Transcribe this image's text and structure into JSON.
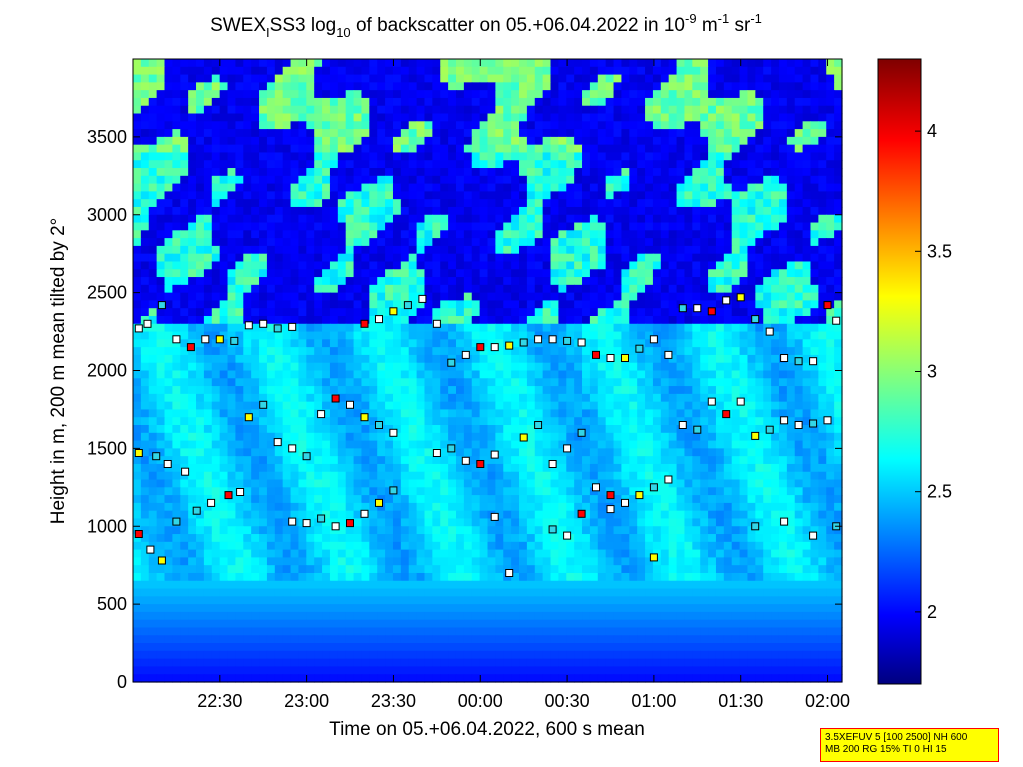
{
  "chart_data": {
    "type": "heatmap",
    "title": {
      "prefix": "SWEX",
      "prefix_sub": "I",
      "mid": "SS3 log",
      "log_sub": "10",
      "text": " of backscatter on 05.+06.04.2022 in 10",
      "exp1": "-9",
      "unit_m": " m",
      "exp2": "-1",
      "unit_sr": " sr",
      "exp3": "-1"
    },
    "xlabel": "Time on 05.+06.04.2022, 600 s mean",
    "ylabel": "Height in m, 200 m mean tilted by 2°",
    "x_ticks": [
      "22:30",
      "23:00",
      "23:30",
      "00:00",
      "00:30",
      "01:00",
      "01:30",
      "02:00"
    ],
    "y_ticks": [
      "0",
      "500",
      "1000",
      "1500",
      "2000",
      "2500",
      "3000",
      "3500"
    ],
    "x_range": [
      "22:00",
      "02:05"
    ],
    "ylim": [
      0,
      4000
    ],
    "colorbar": {
      "range": [
        1.7,
        4.3
      ],
      "ticks": [
        "2",
        "2.5",
        "3",
        "3.5",
        "4"
      ],
      "colormap": "jet"
    },
    "layer_markers": [
      {
        "time": "22:02",
        "height": 2270
      },
      {
        "time": "22:05",
        "height": 2300
      },
      {
        "time": "22:10",
        "height": 2420
      },
      {
        "time": "22:15",
        "height": 2200
      },
      {
        "time": "22:20",
        "height": 2150
      },
      {
        "time": "22:25",
        "height": 2200
      },
      {
        "time": "22:30",
        "height": 2200
      },
      {
        "time": "22:35",
        "height": 2190
      },
      {
        "time": "22:40",
        "height": 2290
      },
      {
        "time": "22:45",
        "height": 2300
      },
      {
        "time": "22:50",
        "height": 2270
      },
      {
        "time": "22:55",
        "height": 2280
      },
      {
        "time": "23:20",
        "height": 2300
      },
      {
        "time": "23:25",
        "height": 2330
      },
      {
        "time": "23:30",
        "height": 2380
      },
      {
        "time": "23:35",
        "height": 2420
      },
      {
        "time": "23:40",
        "height": 2460
      },
      {
        "time": "23:45",
        "height": 2300
      },
      {
        "time": "23:50",
        "height": 2050
      },
      {
        "time": "23:55",
        "height": 2100
      },
      {
        "time": "00:00",
        "height": 2150
      },
      {
        "time": "00:05",
        "height": 2150
      },
      {
        "time": "00:10",
        "height": 2160
      },
      {
        "time": "00:15",
        "height": 2180
      },
      {
        "time": "00:20",
        "height": 2200
      },
      {
        "time": "00:25",
        "height": 2200
      },
      {
        "time": "00:30",
        "height": 2190
      },
      {
        "time": "00:35",
        "height": 2180
      },
      {
        "time": "00:40",
        "height": 2100
      },
      {
        "time": "00:45",
        "height": 2080
      },
      {
        "time": "00:50",
        "height": 2080
      },
      {
        "time": "00:55",
        "height": 2140
      },
      {
        "time": "01:00",
        "height": 2200
      },
      {
        "time": "01:05",
        "height": 2100
      },
      {
        "time": "01:10",
        "height": 2400
      },
      {
        "time": "01:15",
        "height": 2400
      },
      {
        "time": "01:20",
        "height": 2380
      },
      {
        "time": "01:25",
        "height": 2450
      },
      {
        "time": "01:30",
        "height": 2470
      },
      {
        "time": "01:35",
        "height": 2330
      },
      {
        "time": "01:40",
        "height": 2250
      },
      {
        "time": "01:45",
        "height": 2080
      },
      {
        "time": "01:50",
        "height": 2060
      },
      {
        "time": "01:55",
        "height": 2060
      },
      {
        "time": "02:00",
        "height": 2420
      },
      {
        "time": "02:03",
        "height": 2320
      },
      {
        "time": "22:02",
        "height": 1470
      },
      {
        "time": "22:08",
        "height": 1450
      },
      {
        "time": "22:12",
        "height": 1400
      },
      {
        "time": "22:18",
        "height": 1350
      },
      {
        "time": "22:22",
        "height": 1100
      },
      {
        "time": "22:27",
        "height": 1150
      },
      {
        "time": "22:33",
        "height": 1200
      },
      {
        "time": "22:37",
        "height": 1220
      },
      {
        "time": "22:40",
        "height": 1700
      },
      {
        "time": "22:45",
        "height": 1780
      },
      {
        "time": "22:50",
        "height": 1540
      },
      {
        "time": "22:55",
        "height": 1500
      },
      {
        "time": "23:00",
        "height": 1450
      },
      {
        "time": "23:05",
        "height": 1720
      },
      {
        "time": "23:10",
        "height": 1820
      },
      {
        "time": "23:15",
        "height": 1780
      },
      {
        "time": "23:20",
        "height": 1700
      },
      {
        "time": "23:25",
        "height": 1650
      },
      {
        "time": "23:30",
        "height": 1600
      },
      {
        "time": "23:45",
        "height": 1470
      },
      {
        "time": "23:50",
        "height": 1500
      },
      {
        "time": "23:55",
        "height": 1420
      },
      {
        "time": "00:00",
        "height": 1400
      },
      {
        "time": "00:05",
        "height": 1460
      },
      {
        "time": "00:15",
        "height": 1570
      },
      {
        "time": "00:20",
        "height": 1650
      },
      {
        "time": "00:25",
        "height": 1400
      },
      {
        "time": "00:30",
        "height": 1500
      },
      {
        "time": "00:35",
        "height": 1600
      },
      {
        "time": "00:40",
        "height": 1250
      },
      {
        "time": "00:45",
        "height": 1200
      },
      {
        "time": "00:50",
        "height": 1150
      },
      {
        "time": "00:55",
        "height": 1200
      },
      {
        "time": "01:00",
        "height": 1250
      },
      {
        "time": "01:05",
        "height": 1300
      },
      {
        "time": "01:10",
        "height": 1650
      },
      {
        "time": "01:15",
        "height": 1620
      },
      {
        "time": "01:20",
        "height": 1800
      },
      {
        "time": "01:25",
        "height": 1720
      },
      {
        "time": "01:30",
        "height": 1800
      },
      {
        "time": "01:35",
        "height": 1580
      },
      {
        "time": "01:40",
        "height": 1620
      },
      {
        "time": "01:45",
        "height": 1680
      },
      {
        "time": "01:50",
        "height": 1650
      },
      {
        "time": "01:55",
        "height": 1660
      },
      {
        "time": "02:00",
        "height": 1680
      },
      {
        "time": "22:02",
        "height": 950
      },
      {
        "time": "22:06",
        "height": 850
      },
      {
        "time": "22:10",
        "height": 780
      },
      {
        "time": "22:15",
        "height": 1030
      },
      {
        "time": "22:55",
        "height": 1030
      },
      {
        "time": "23:00",
        "height": 1020
      },
      {
        "time": "23:05",
        "height": 1050
      },
      {
        "time": "23:10",
        "height": 1000
      },
      {
        "time": "23:15",
        "height": 1020
      },
      {
        "time": "23:20",
        "height": 1080
      },
      {
        "time": "23:25",
        "height": 1150
      },
      {
        "time": "23:30",
        "height": 1230
      },
      {
        "time": "00:05",
        "height": 1060
      },
      {
        "time": "00:10",
        "height": 700
      },
      {
        "time": "00:25",
        "height": 980
      },
      {
        "time": "00:30",
        "height": 940
      },
      {
        "time": "00:35",
        "height": 1080
      },
      {
        "time": "00:45",
        "height": 1110
      },
      {
        "time": "01:00",
        "height": 800
      },
      {
        "time": "01:35",
        "height": 1000
      },
      {
        "time": "01:45",
        "height": 1030
      },
      {
        "time": "01:55",
        "height": 940
      },
      {
        "time": "02:03",
        "height": 1000
      }
    ]
  },
  "info_box": {
    "line1": "3.5XEFUV 5 [100 2500] NH 600",
    "line2": "MB 200 RG 15% TI 0 HI 15"
  }
}
